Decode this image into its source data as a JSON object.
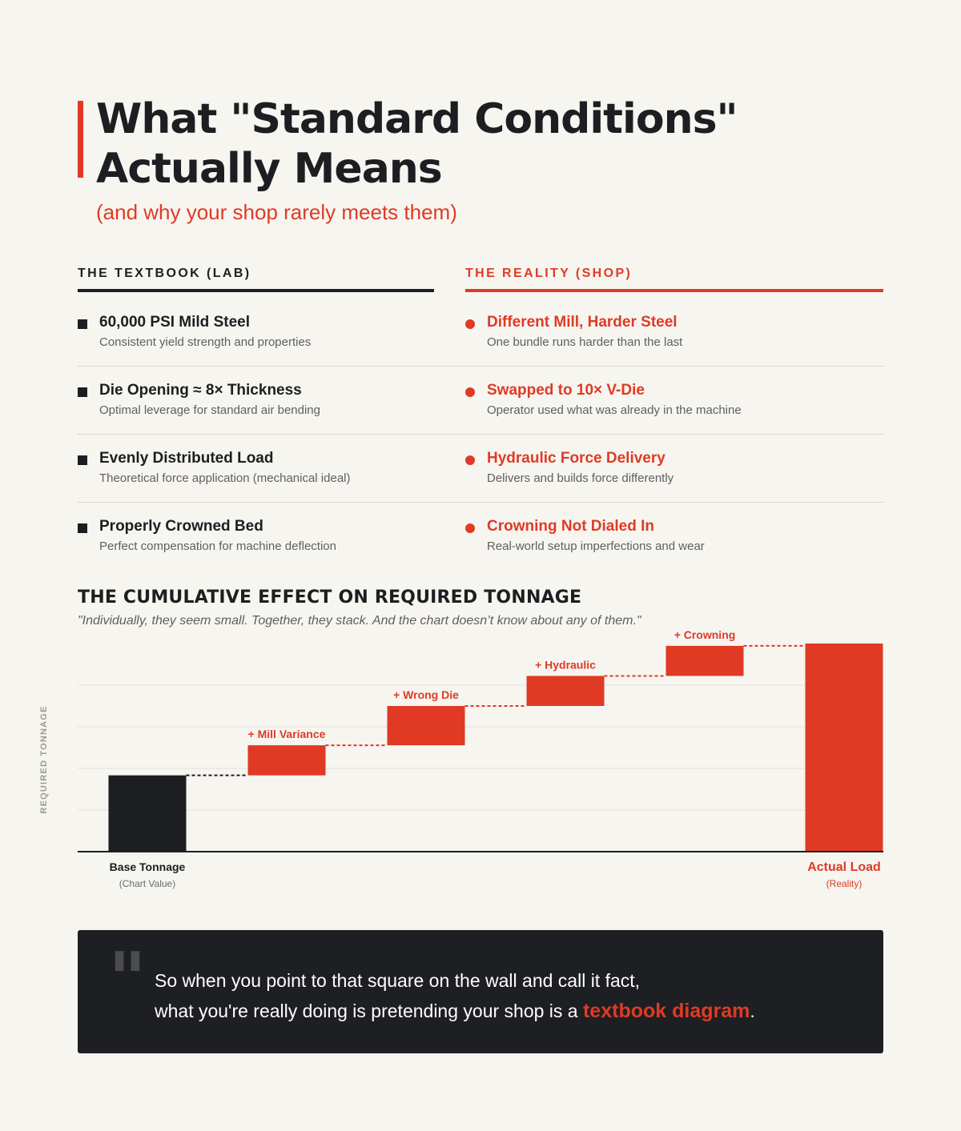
{
  "header": {
    "title_line1": "What \"Standard Conditions\"",
    "title_line2": "Actually Means",
    "subtitle": "(and why your shop rarely meets them)"
  },
  "columns": {
    "lab_heading": "THE TEXTBOOK (LAB)",
    "shop_heading": "THE REALITY (SHOP)"
  },
  "lab_items": [
    {
      "title": "60,000 PSI Mild Steel",
      "desc": "Consistent yield strength and properties"
    },
    {
      "title": "Die Opening ≈ 8× Thickness",
      "desc": "Optimal leverage for standard air bending"
    },
    {
      "title": "Evenly Distributed Load",
      "desc": "Theoretical force application (mechanical ideal)"
    },
    {
      "title": "Properly Crowned Bed",
      "desc": "Perfect compensation for machine deflection"
    }
  ],
  "shop_items": [
    {
      "title": "Different Mill, Harder Steel",
      "desc": "One bundle runs harder than the last"
    },
    {
      "title": "Swapped to 10× V-Die",
      "desc": "Operator used what was already in the machine"
    },
    {
      "title": "Hydraulic Force Delivery",
      "desc": "Delivers and builds force differently"
    },
    {
      "title": "Crowning Not Dialed In",
      "desc": "Real-world setup imperfections and wear"
    }
  ],
  "chart_section": {
    "heading": "THE CUMULATIVE EFFECT ON REQUIRED TONNAGE",
    "quote": "\"Individually, they seem small. Together, they stack. And the chart doesn’t know about any of them.\""
  },
  "chart_data": {
    "type": "bar",
    "subtype": "waterfall",
    "ylabel": "REQUIRED TONNAGE",
    "ylim": [
      0,
      4.5
    ],
    "grid": true,
    "categories": [
      "Base Tonnage",
      "+ Mill Variance",
      "+ Wrong Die",
      "+ Hydraulic",
      "+ Crowning",
      "Actual Load"
    ],
    "category_sublabels": [
      "(Chart Value)",
      "",
      "",
      "",
      "",
      "(Reality)"
    ],
    "values": [
      1.65,
      0.65,
      0.85,
      0.65,
      0.65,
      4.5
    ],
    "bar_kinds": [
      "total",
      "increment",
      "increment",
      "increment",
      "increment",
      "total"
    ],
    "colors": {
      "base": "#1d1e21",
      "increment": "#e03a25",
      "actual": "#e03a25"
    }
  },
  "closing": {
    "line1": "So when you point to that square on the wall and call it fact,",
    "line2_prefix": "what you're really doing is pretending your shop is a ",
    "highlight": "textbook diagram",
    "suffix": "."
  }
}
